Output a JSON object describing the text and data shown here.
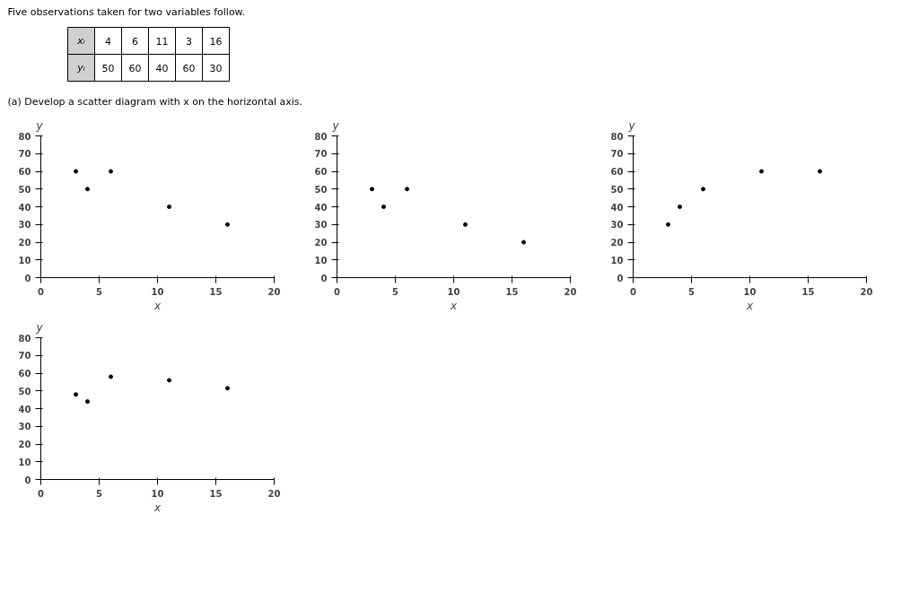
{
  "chart_data": [
    {
      "type": "other",
      "title": "Five observations taken for two variables follow.",
      "subtitle": "(a)  Develop a scatter diagram with x on the horizontal axis.",
      "annotations": [
        "xᵢ",
        "4",
        "6",
        "11",
        "3",
        "16",
        "yᵢ",
        "50",
        "60",
        "40",
        "60",
        "30"
      ]
    },
    {
      "type": "scatter",
      "xlabel": "x",
      "ylabel": "y",
      "x": [
        3,
        4,
        6,
        11,
        16
      ],
      "values": [
        60,
        50,
        60,
        40,
        30
      ],
      "xlim": [
        0,
        20
      ],
      "ylim": [
        0,
        80
      ],
      "xticks": [
        0,
        5,
        10,
        15,
        20
      ],
      "yticks": [
        0,
        10,
        20,
        30,
        40,
        50,
        60,
        70,
        80
      ],
      "marker": "circle",
      "color": "#000000",
      "grid": false
    },
    {
      "type": "scatter",
      "xlabel": "x",
      "ylabel": "y",
      "x": [
        3,
        4,
        6,
        11,
        16
      ],
      "values": [
        50,
        40,
        50,
        30,
        20
      ],
      "xlim": [
        0,
        20
      ],
      "ylim": [
        0,
        80
      ],
      "xticks": [
        0,
        5,
        10,
        15,
        20
      ],
      "yticks": [
        0,
        10,
        20,
        30,
        40,
        50,
        60,
        70,
        80
      ],
      "marker": "circle",
      "color": "#000000",
      "grid": false
    },
    {
      "type": "scatter",
      "xlabel": "x",
      "ylabel": "y",
      "x": [
        3,
        4,
        6,
        11,
        16
      ],
      "values": [
        30,
        40,
        50,
        60,
        60
      ],
      "xlim": [
        0,
        20
      ],
      "ylim": [
        0,
        80
      ],
      "xticks": [
        0,
        5,
        10,
        15,
        20
      ],
      "yticks": [
        0,
        10,
        20,
        30,
        40,
        50,
        60,
        70,
        80
      ],
      "marker": "circle",
      "color": "#000000",
      "grid": false
    },
    {
      "type": "scatter",
      "xlabel": "x",
      "ylabel": "y",
      "x": [
        3,
        4,
        6,
        11,
        16
      ],
      "values": [
        48,
        44,
        58,
        56,
        51.5
      ],
      "xlim": [
        0,
        20
      ],
      "ylim": [
        0,
        80
      ],
      "xticks": [
        0,
        5,
        10,
        15,
        20
      ],
      "yticks": [
        0,
        10,
        20,
        30,
        40,
        50,
        60,
        70,
        80
      ],
      "marker": "circle",
      "color": "#000000",
      "grid": false
    }
  ]
}
